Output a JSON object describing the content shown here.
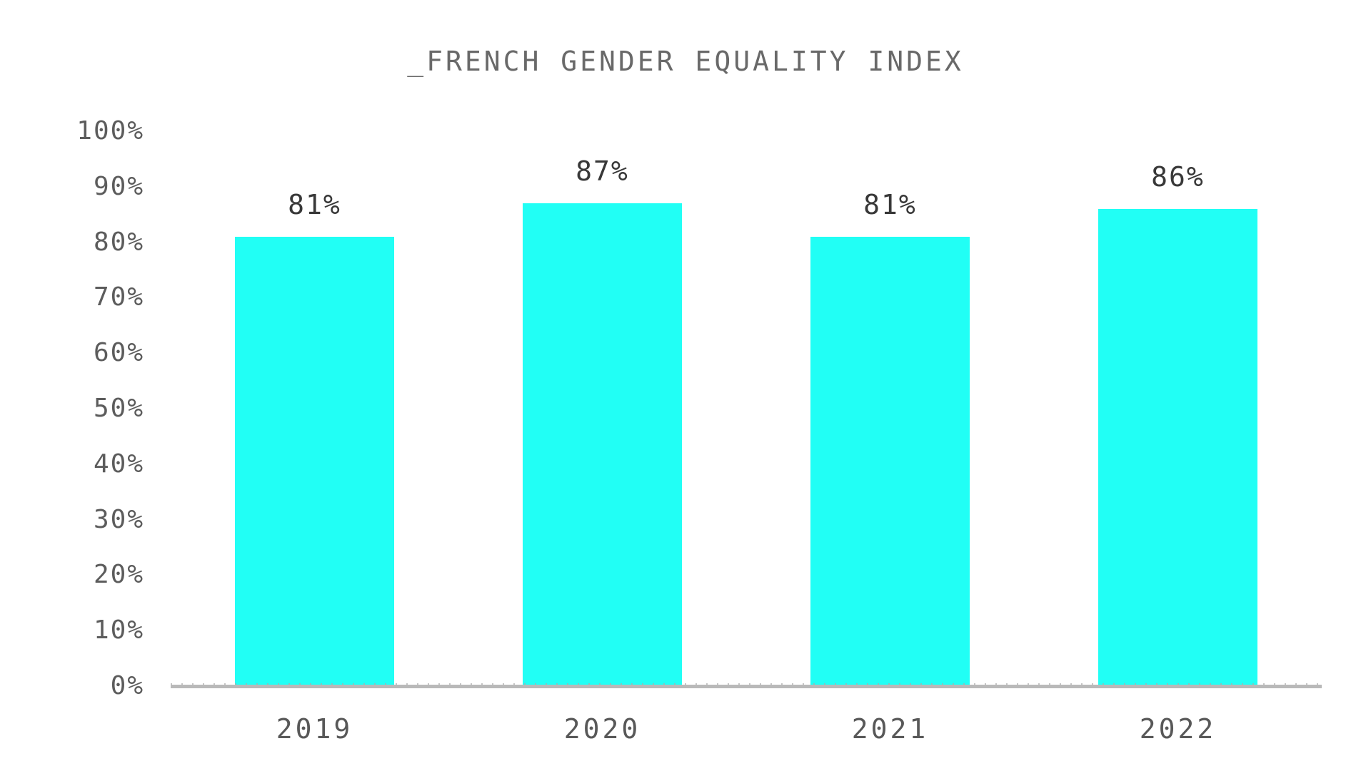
{
  "chart_data": {
    "type": "bar",
    "title": "_FRENCH GENDER EQUALITY INDEX",
    "categories": [
      "2019",
      "2020",
      "2021",
      "2022"
    ],
    "values": [
      81,
      87,
      81,
      86
    ],
    "value_labels": [
      "81%",
      "87%",
      "81%",
      "86%"
    ],
    "xlabel": "",
    "ylabel": "",
    "ylim": [
      0,
      100
    ],
    "ytick_step": 10,
    "ytick_labels": [
      "0%",
      "10%",
      "20%",
      "30%",
      "40%",
      "50%",
      "60%",
      "70%",
      "80%",
      "90%",
      "100%"
    ],
    "grid": false,
    "legend": "none",
    "colors": {
      "bar_fill": "#21fff5",
      "title_text": "#696969",
      "axis_tick_text": "#5c5c5c",
      "data_label_text": "#383838",
      "axis_line": "#b9b9b9",
      "background": "#ffffff"
    }
  }
}
